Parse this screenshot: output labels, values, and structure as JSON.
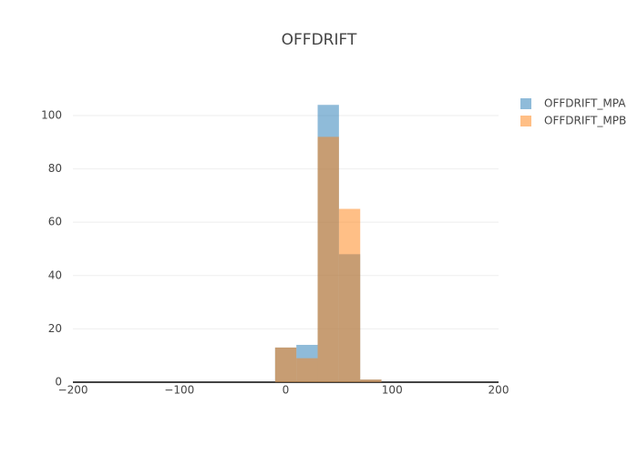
{
  "chart_data": {
    "type": "histogram",
    "title": "OFFDRIFT",
    "series": [
      {
        "name": "OFFDRIFT_MPA",
        "color": "#1f77b4",
        "bins": [
          -10,
          10,
          30,
          50,
          70,
          90
        ],
        "values": [
          13,
          14,
          104,
          48,
          1
        ]
      },
      {
        "name": "OFFDRIFT_MPB",
        "color": "#ff7f0e",
        "bins": [
          -10,
          10,
          30,
          50,
          70,
          90
        ],
        "values": [
          13,
          9,
          92,
          65,
          1
        ]
      }
    ],
    "xlim": [
      -200,
      200
    ],
    "xticks": [
      {
        "value": -200,
        "label": "−200"
      },
      {
        "value": -100,
        "label": "−100"
      },
      0,
      100,
      200
    ],
    "ylim": [
      0,
      109.2
    ],
    "yticks": [
      0,
      20,
      40,
      60,
      80,
      100
    ],
    "grid": true,
    "legend": "top-right"
  }
}
